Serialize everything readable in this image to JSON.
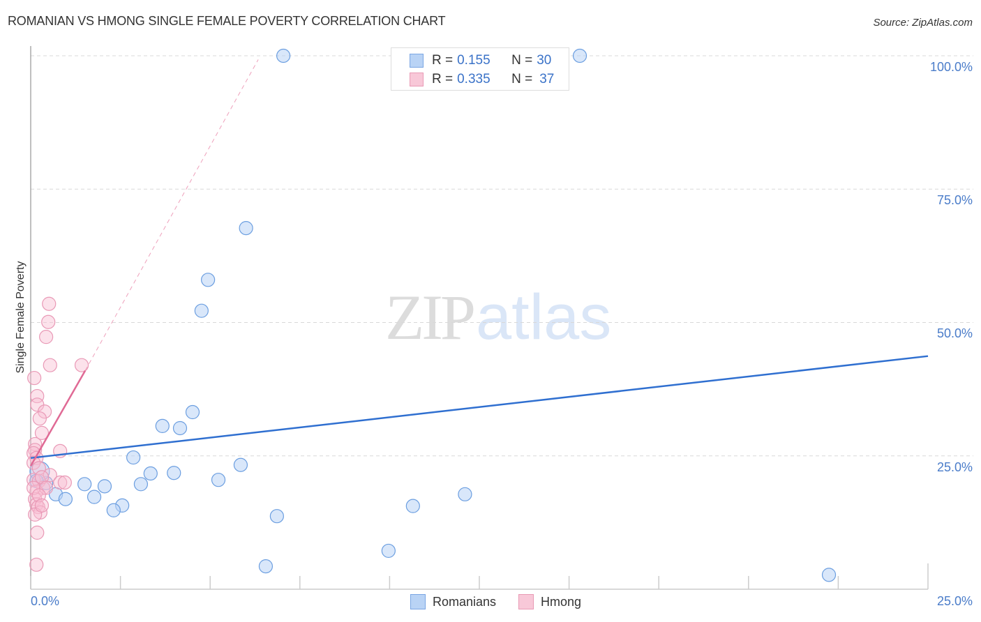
{
  "header": {
    "title": "ROMANIAN VS HMONG SINGLE FEMALE POVERTY CORRELATION CHART",
    "source": "Source: ZipAtlas.com"
  },
  "legend": {
    "rows": [
      {
        "r_label": "R = ",
        "r_value": "0.155",
        "n_label": "N = ",
        "n_value": "30",
        "color": "#b9d3f5"
      },
      {
        "r_label": "R = ",
        "r_value": "0.335",
        "n_label": "N = ",
        "n_value": "37",
        "color": "#f8c8d8"
      }
    ],
    "series": [
      {
        "name": "Romanians",
        "color": "#b9d3f5"
      },
      {
        "name": "Hmong",
        "color": "#f8c8d8"
      }
    ]
  },
  "axes": {
    "y_label": "Single Female Poverty",
    "y_ticks": [
      "100.0%",
      "75.0%",
      "50.0%",
      "25.0%"
    ],
    "x_ticks": [
      "0.0%",
      "25.0%"
    ]
  },
  "watermark": {
    "zip": "ZIP",
    "atlas": "atlas"
  },
  "chart_data": {
    "type": "scatter",
    "title": "ROMANIAN VS HMONG SINGLE FEMALE POVERTY CORRELATION CHART",
    "xlabel": "",
    "ylabel": "Single Female Poverty",
    "xlim": [
      0,
      25
    ],
    "ylim": [
      0,
      100
    ],
    "x_tick_labels": [
      "0.0%",
      "25.0%"
    ],
    "y_tick_labels": [
      "25.0%",
      "50.0%",
      "75.0%",
      "100.0%"
    ],
    "grid": "horizontal dashed at 25, 50, 75, 100",
    "legend_position": "top center (stats) and bottom center (series)",
    "series": [
      {
        "name": "Romanians",
        "color": "#6b9ee0",
        "R": 0.155,
        "N": 30,
        "points": [
          [
            7.04,
            100.0
          ],
          [
            15.3,
            100.0
          ],
          [
            6.0,
            67.7
          ],
          [
            4.94,
            58.0
          ],
          [
            4.76,
            52.2
          ],
          [
            4.51,
            33.2
          ],
          [
            3.67,
            30.6
          ],
          [
            4.16,
            30.2
          ],
          [
            2.86,
            24.7
          ],
          [
            5.85,
            23.3
          ],
          [
            3.34,
            21.7
          ],
          [
            3.99,
            21.8
          ],
          [
            5.23,
            20.5
          ],
          [
            1.5,
            19.7
          ],
          [
            2.06,
            19.3
          ],
          [
            3.07,
            19.7
          ],
          [
            0.43,
            19.9
          ],
          [
            0.7,
            17.8
          ],
          [
            0.97,
            16.9
          ],
          [
            1.77,
            17.3
          ],
          [
            2.55,
            15.7
          ],
          [
            2.31,
            14.8
          ],
          [
            12.1,
            17.8
          ],
          [
            10.65,
            15.6
          ],
          [
            6.86,
            13.7
          ],
          [
            9.97,
            7.2
          ],
          [
            6.55,
            4.3
          ],
          [
            22.24,
            2.7
          ],
          [
            0.25,
            22.1
          ],
          [
            0.16,
            20.3
          ]
        ],
        "trendline": {
          "x": [
            0,
            25
          ],
          "y": [
            24.6,
            43.7
          ],
          "style": "solid"
        }
      },
      {
        "name": "Hmong",
        "color": "#e77fa3",
        "R": 0.335,
        "N": 37,
        "points": [
          [
            0.51,
            53.5
          ],
          [
            0.49,
            50.1
          ],
          [
            0.43,
            47.3
          ],
          [
            0.54,
            42.0
          ],
          [
            1.42,
            42.0
          ],
          [
            0.1,
            39.6
          ],
          [
            0.18,
            36.2
          ],
          [
            0.18,
            34.6
          ],
          [
            0.39,
            33.3
          ],
          [
            0.25,
            32.0
          ],
          [
            0.31,
            29.3
          ],
          [
            0.82,
            25.9
          ],
          [
            0.12,
            27.2
          ],
          [
            0.12,
            26.1
          ],
          [
            0.08,
            25.5
          ],
          [
            0.16,
            24.6
          ],
          [
            0.08,
            23.7
          ],
          [
            0.23,
            22.7
          ],
          [
            0.54,
            21.4
          ],
          [
            0.08,
            20.5
          ],
          [
            0.23,
            20.3
          ],
          [
            0.82,
            20.0
          ],
          [
            0.95,
            20.0
          ],
          [
            0.35,
            19.0
          ],
          [
            0.16,
            18.3
          ],
          [
            0.12,
            16.9
          ],
          [
            0.16,
            15.9
          ],
          [
            0.21,
            15.4
          ],
          [
            0.27,
            14.4
          ],
          [
            0.12,
            14.0
          ],
          [
            0.18,
            10.6
          ],
          [
            0.16,
            4.6
          ],
          [
            0.31,
            21.0
          ],
          [
            0.08,
            19.0
          ],
          [
            0.43,
            19.0
          ],
          [
            0.23,
            17.6
          ],
          [
            0.31,
            15.7
          ]
        ],
        "trendline": {
          "x": [
            0,
            1.52
          ],
          "y": [
            23.1,
            41.0
          ],
          "style": "solid",
          "extension": {
            "x": [
              1.52,
              6.34
            ],
            "y": [
              41.0,
              99.3
            ],
            "style": "dashed"
          }
        }
      }
    ]
  }
}
